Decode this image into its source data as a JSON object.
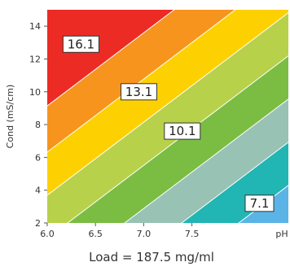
{
  "chart_data": {
    "type": "heatmap",
    "subtype": "filled-contour",
    "title": "",
    "caption": "Load = 187.5 mg/ml",
    "xlabel": "pH",
    "ylabel": "Cond (mS/cm)",
    "xlim": [
      6.0,
      8.5
    ],
    "ylim": [
      2,
      15
    ],
    "x_ticks": [
      6.0,
      6.5,
      7.0,
      7.5
    ],
    "x_tick_labels": [
      "6.0",
      "6.5",
      "7.0",
      "7.5"
    ],
    "y_ticks": [
      2,
      4,
      6,
      8,
      10,
      12,
      14
    ],
    "y_tick_labels": [
      "2",
      "4",
      "6",
      "8",
      "10",
      "12",
      "14"
    ],
    "grid": false,
    "legend": "none",
    "contour_model": "value increases toward low pH / high conductivity; contours are parallel diagonal lines",
    "bands": [
      {
        "color": "#2f6fbf"
      },
      {
        "color": "#5ab4e6"
      },
      {
        "color": "#21b5b4"
      },
      {
        "color": "#98c2b4"
      },
      {
        "color": "#7bbd43"
      },
      {
        "color": "#b7d14a"
      },
      {
        "color": "#fdd101"
      },
      {
        "color": "#f7941e"
      },
      {
        "color": "#ec2b24"
      }
    ],
    "contour_labels": [
      {
        "text": "16.1",
        "x": 6.35,
        "y": 12.9
      },
      {
        "text": "13.1",
        "x": 6.95,
        "y": 10.0
      },
      {
        "text": "10.1",
        "x": 7.4,
        "y": 7.6
      },
      {
        "text": "7.1",
        "x": 8.2,
        "y": 3.2
      }
    ]
  }
}
